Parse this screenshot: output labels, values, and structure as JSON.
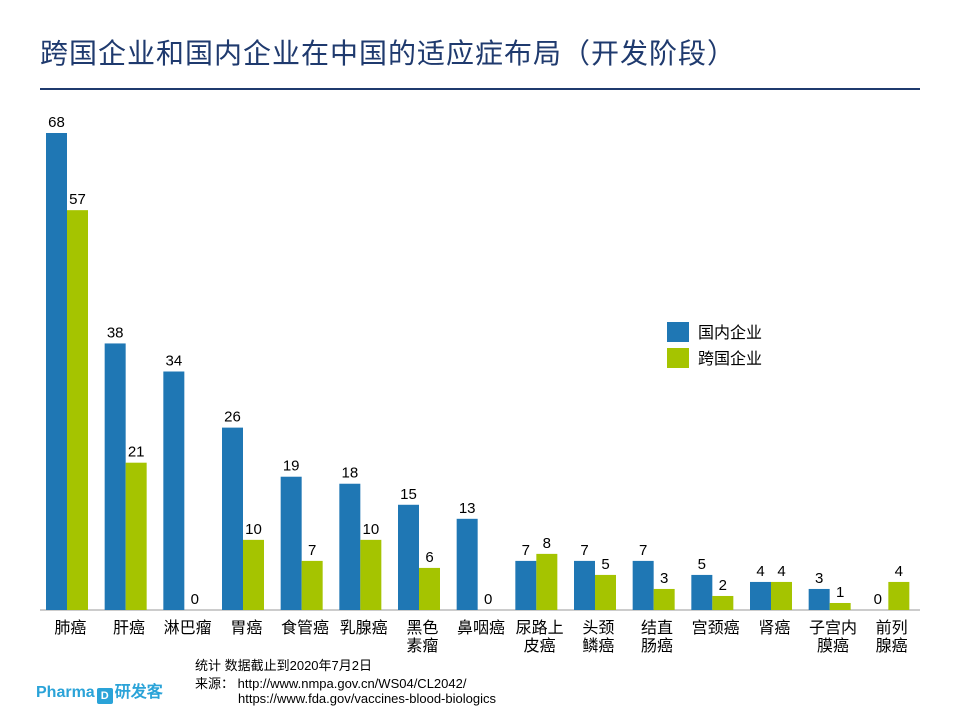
{
  "title": "跨国企业和国内企业在中国的适应症布局（开发阶段）",
  "chart_data": {
    "type": "bar",
    "title": "跨国企业和国内企业在中国的适应症布局（开发阶段）",
    "categories": [
      [
        "肺癌"
      ],
      [
        "肝癌"
      ],
      [
        "淋巴瘤"
      ],
      [
        "胃癌"
      ],
      [
        "食管癌"
      ],
      [
        "乳腺癌"
      ],
      [
        "黑色",
        "素瘤"
      ],
      [
        "鼻咽癌"
      ],
      [
        "尿路上",
        "皮癌"
      ],
      [
        "头颈",
        "鳞癌"
      ],
      [
        "结直",
        "肠癌"
      ],
      [
        "宫颈癌"
      ],
      [
        "肾癌"
      ],
      [
        "子宫内",
        "膜癌"
      ],
      [
        "前列",
        "腺癌"
      ]
    ],
    "series": [
      {
        "name": "国内企业",
        "color": "#1f77b4",
        "values": [
          68,
          38,
          34,
          26,
          19,
          18,
          15,
          13,
          7,
          7,
          7,
          5,
          4,
          3,
          0
        ]
      },
      {
        "name": "跨国企业",
        "color": "#a5c400",
        "values": [
          57,
          21,
          0,
          10,
          7,
          10,
          6,
          0,
          8,
          5,
          3,
          2,
          4,
          1,
          4
        ]
      }
    ],
    "ylim": [
      0,
      68
    ],
    "legend_position": "right",
    "grid": false
  },
  "footer": {
    "note": "统计 数据截止到2020年7月2日",
    "source_label": "来源：",
    "source_url_1": "http://www.nmpa.gov.cn/WS04/CL2042/",
    "source_url_2": "https://www.fda.gov/vaccines-blood-biologics"
  },
  "logo": {
    "text_en": "Pharma",
    "mark": "D",
    "text_cn": "研发客"
  }
}
